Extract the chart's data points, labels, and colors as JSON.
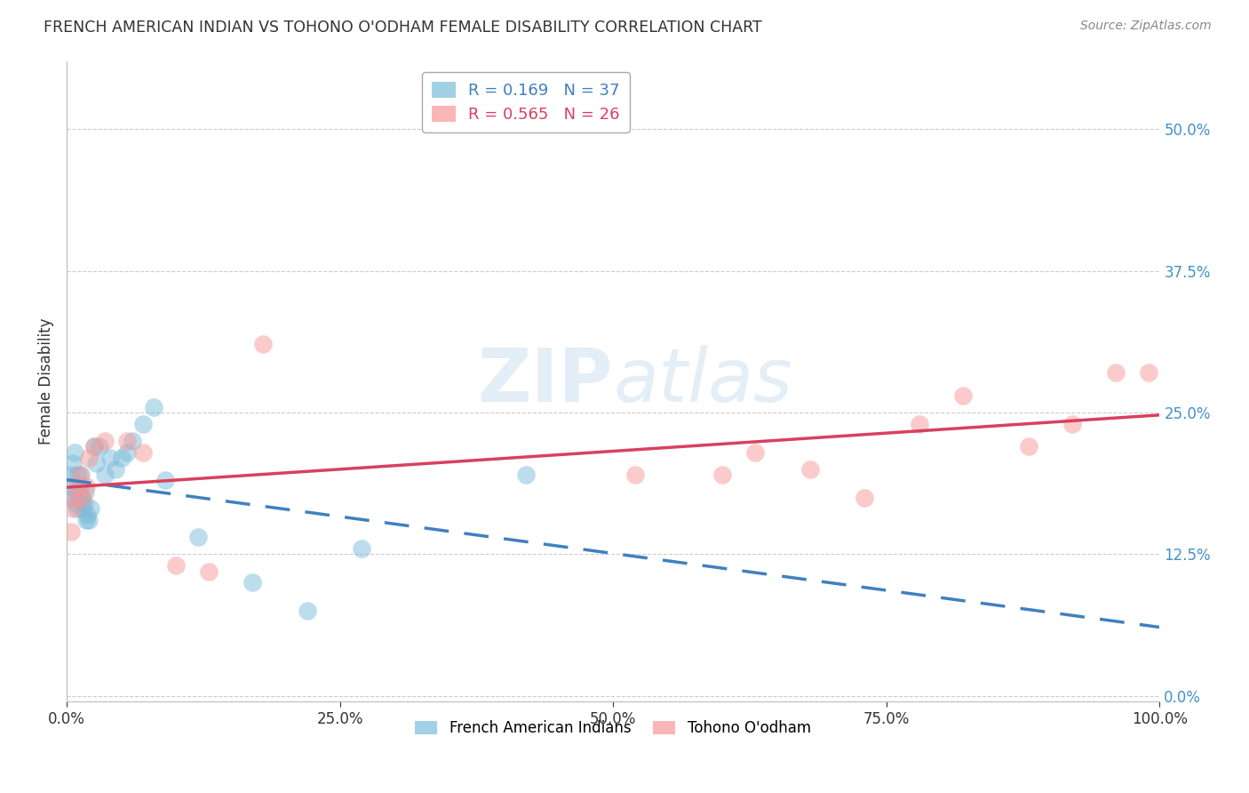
{
  "title": "FRENCH AMERICAN INDIAN VS TOHONO O'ODHAM FEMALE DISABILITY CORRELATION CHART",
  "source": "Source: ZipAtlas.com",
  "ylabel": "Female Disability",
  "xlabel": "",
  "legend_label1": "French American Indians",
  "legend_label2": "Tohono O'odham",
  "R1": 0.169,
  "N1": 37,
  "R2": 0.565,
  "N2": 26,
  "color1": "#7bbcdb",
  "color2": "#f89898",
  "regression_color1": "#4080c0",
  "regression_color2": "#d94060",
  "xlim": [
    0.0,
    1.0
  ],
  "ylim": [
    -0.005,
    0.56
  ],
  "yticks": [
    0.0,
    0.125,
    0.25,
    0.375,
    0.5
  ],
  "xticks": [
    0.0,
    0.25,
    0.5,
    0.75,
    1.0
  ],
  "watermark": "ZIPatlas",
  "blue_x": [
    0.003,
    0.004,
    0.005,
    0.006,
    0.007,
    0.008,
    0.009,
    0.01,
    0.01,
    0.011,
    0.012,
    0.013,
    0.014,
    0.015,
    0.016,
    0.017,
    0.018,
    0.019,
    0.02,
    0.022,
    0.025,
    0.027,
    0.03,
    0.035,
    0.04,
    0.045,
    0.05,
    0.055,
    0.06,
    0.07,
    0.08,
    0.09,
    0.12,
    0.17,
    0.22,
    0.27,
    0.42
  ],
  "blue_y": [
    0.195,
    0.185,
    0.175,
    0.205,
    0.215,
    0.17,
    0.18,
    0.165,
    0.195,
    0.175,
    0.185,
    0.195,
    0.175,
    0.165,
    0.17,
    0.18,
    0.155,
    0.16,
    0.155,
    0.165,
    0.22,
    0.205,
    0.22,
    0.195,
    0.21,
    0.2,
    0.21,
    0.215,
    0.225,
    0.24,
    0.255,
    0.19,
    0.14,
    0.1,
    0.075,
    0.13,
    0.195
  ],
  "pink_x": [
    0.004,
    0.006,
    0.008,
    0.01,
    0.012,
    0.015,
    0.018,
    0.02,
    0.025,
    0.035,
    0.055,
    0.07,
    0.1,
    0.13,
    0.18,
    0.52,
    0.6,
    0.63,
    0.68,
    0.73,
    0.78,
    0.82,
    0.88,
    0.92,
    0.96,
    0.99
  ],
  "pink_y": [
    0.145,
    0.165,
    0.175,
    0.185,
    0.195,
    0.175,
    0.185,
    0.21,
    0.22,
    0.225,
    0.225,
    0.215,
    0.115,
    0.11,
    0.31,
    0.195,
    0.195,
    0.215,
    0.2,
    0.175,
    0.24,
    0.265,
    0.22,
    0.24,
    0.285,
    0.285
  ]
}
